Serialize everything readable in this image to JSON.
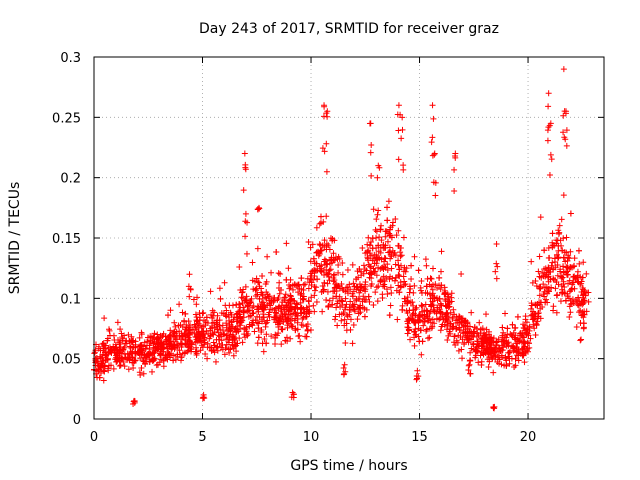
{
  "chart_data": {
    "type": "scatter",
    "title": "Day 243 of 2017, SRMTID for receiver graz",
    "xlabel": "GPS time / hours",
    "ylabel": "SRMTID / TECUs",
    "xlim": [
      0,
      23.5
    ],
    "ylim": [
      0,
      0.3
    ],
    "xticks": [
      0,
      5,
      10,
      15,
      20
    ],
    "yticks": [
      0,
      0.05,
      0.1,
      0.15,
      0.2,
      0.25,
      0.3
    ],
    "xtick_labels": [
      "0",
      "5",
      "10",
      "15",
      "20"
    ],
    "ytick_labels": [
      "0",
      "0.05",
      "0.1",
      "0.15",
      "0.2",
      "0.25",
      "0.3"
    ],
    "grid": true,
    "marker": "+",
    "color": "#ff0000",
    "series": [
      {
        "name": "SRMTID",
        "trend": [
          [
            0.0,
            0.045
          ],
          [
            0.5,
            0.052
          ],
          [
            1.0,
            0.055
          ],
          [
            1.5,
            0.055
          ],
          [
            2.0,
            0.052
          ],
          [
            2.5,
            0.055
          ],
          [
            3.0,
            0.058
          ],
          [
            3.5,
            0.062
          ],
          [
            4.0,
            0.065
          ],
          [
            4.5,
            0.07
          ],
          [
            5.0,
            0.072
          ],
          [
            5.5,
            0.068
          ],
          [
            6.0,
            0.07
          ],
          [
            6.5,
            0.075
          ],
          [
            7.0,
            0.095
          ],
          [
            7.5,
            0.095
          ],
          [
            8.0,
            0.09
          ],
          [
            8.5,
            0.09
          ],
          [
            9.0,
            0.095
          ],
          [
            9.5,
            0.09
          ],
          [
            10.0,
            0.11
          ],
          [
            10.5,
            0.14
          ],
          [
            11.0,
            0.12
          ],
          [
            11.5,
            0.09
          ],
          [
            12.0,
            0.1
          ],
          [
            12.5,
            0.11
          ],
          [
            13.0,
            0.13
          ],
          [
            13.5,
            0.135
          ],
          [
            14.0,
            0.13
          ],
          [
            14.5,
            0.09
          ],
          [
            15.0,
            0.08
          ],
          [
            15.5,
            0.1
          ],
          [
            16.0,
            0.1
          ],
          [
            16.5,
            0.08
          ],
          [
            17.0,
            0.07
          ],
          [
            17.5,
            0.065
          ],
          [
            18.0,
            0.06
          ],
          [
            18.5,
            0.055
          ],
          [
            19.0,
            0.06
          ],
          [
            19.5,
            0.06
          ],
          [
            20.0,
            0.07
          ],
          [
            20.5,
            0.1
          ],
          [
            21.0,
            0.12
          ],
          [
            21.5,
            0.13
          ],
          [
            22.0,
            0.11
          ],
          [
            22.5,
            0.095
          ],
          [
            22.8,
            0.09
          ]
        ],
        "spikes": [
          [
            6.95,
            0.22
          ],
          [
            7.6,
            0.175
          ],
          [
            10.6,
            0.26
          ],
          [
            10.75,
            0.255
          ],
          [
            12.75,
            0.245
          ],
          [
            13.1,
            0.21
          ],
          [
            14.05,
            0.26
          ],
          [
            14.2,
            0.25
          ],
          [
            15.6,
            0.26
          ],
          [
            15.7,
            0.22
          ],
          [
            16.65,
            0.22
          ],
          [
            18.55,
            0.145
          ],
          [
            20.95,
            0.27
          ],
          [
            21.05,
            0.245
          ],
          [
            21.65,
            0.29
          ],
          [
            21.75,
            0.255
          ],
          [
            11.55,
            0.045
          ],
          [
            17.3,
            0.045
          ],
          [
            18.45,
            0.01
          ],
          [
            5.05,
            0.02
          ],
          [
            9.15,
            0.022
          ],
          [
            7.0,
            0.17
          ],
          [
            14.9,
            0.04
          ],
          [
            1.85,
            0.015
          ],
          [
            4.4,
            0.12
          ]
        ]
      }
    ]
  }
}
